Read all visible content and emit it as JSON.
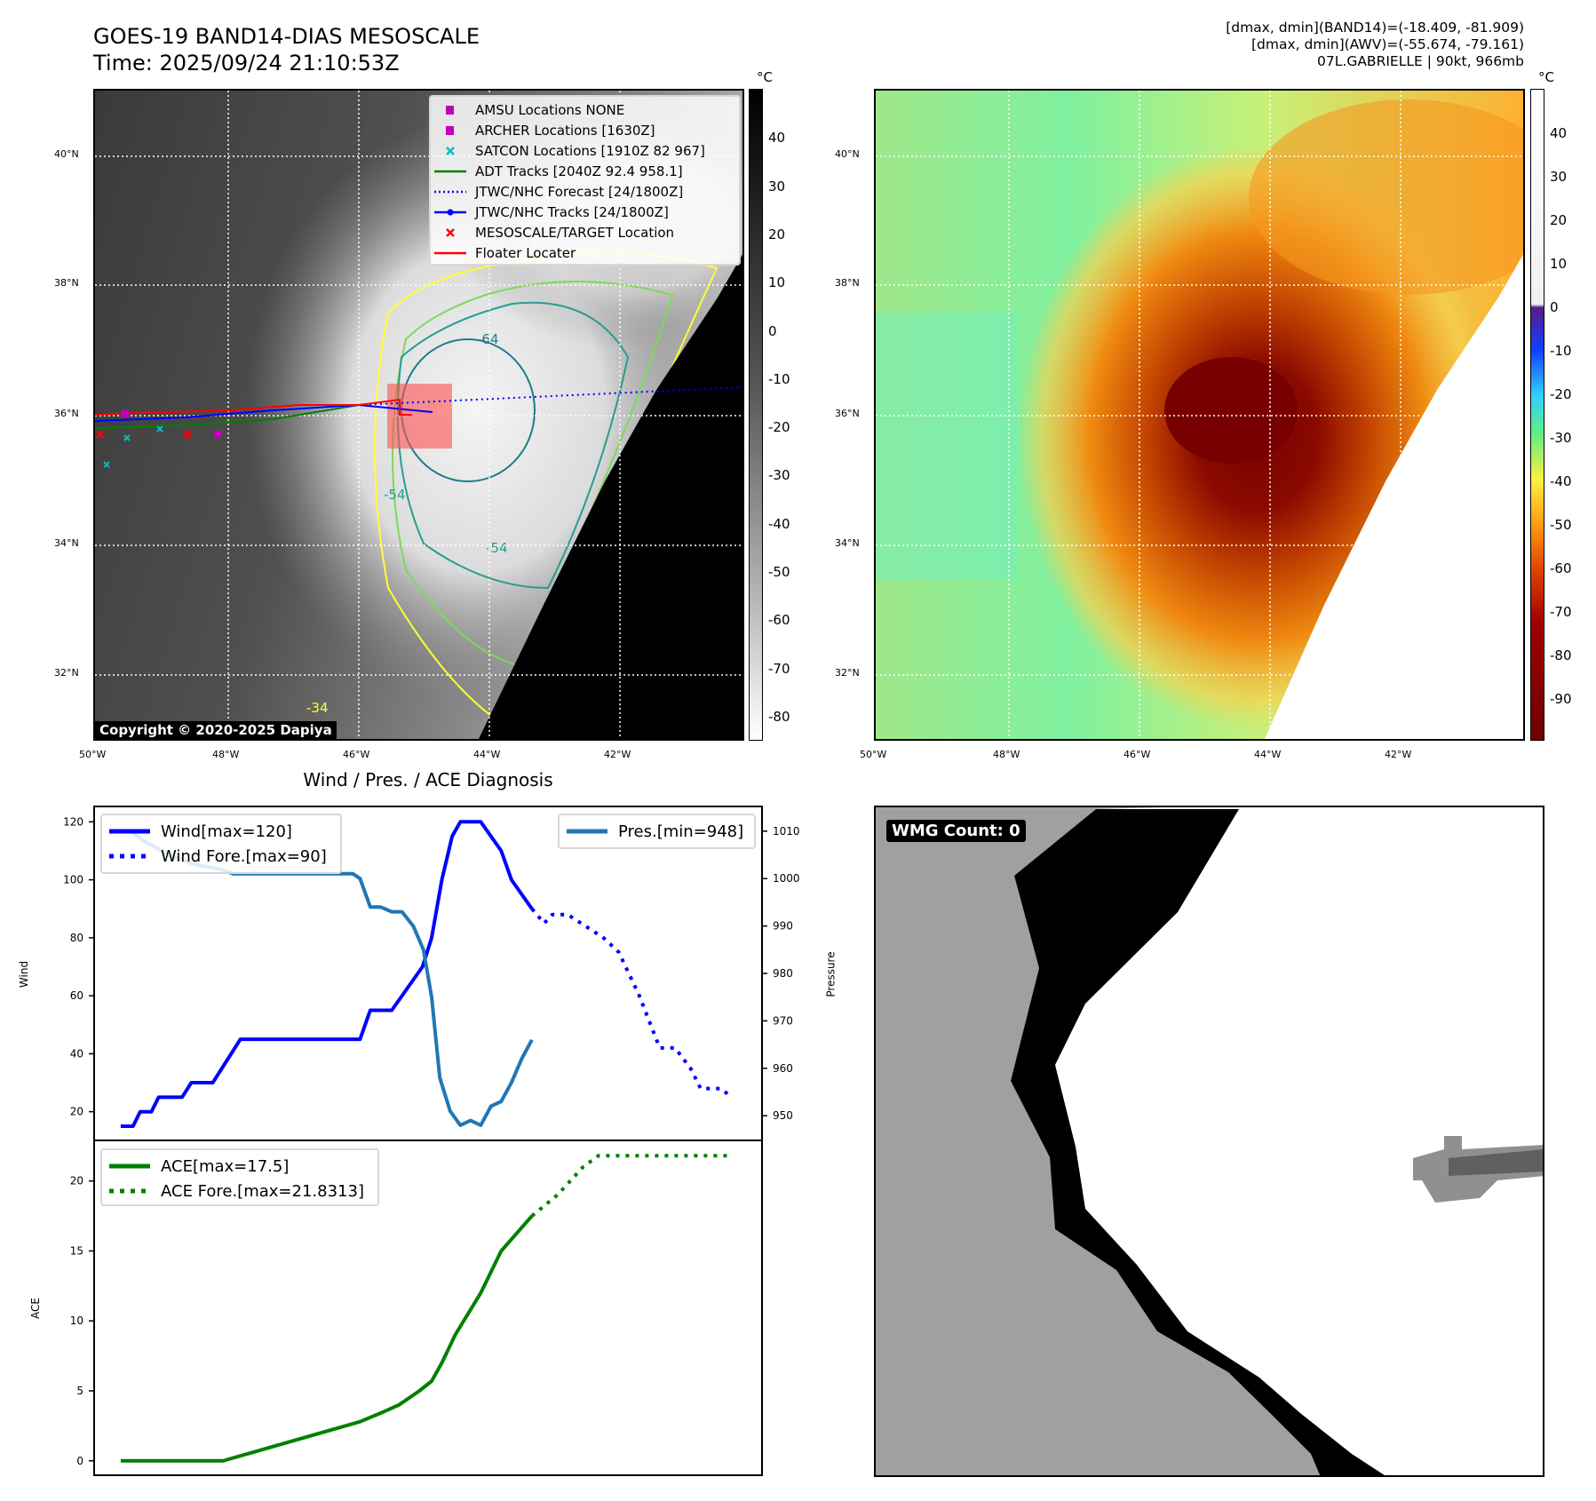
{
  "header": {
    "title": "GOES-19 BAND14-DIAS MESOSCALE",
    "time": "Time: 2025/09/24 21:10:53Z",
    "info_line1": "[dmax, dmin](BAND14)=(-18.409, -81.909)",
    "info_line2": "[dmax, dmin](AWV)=(-55.674, -79.161)",
    "info_line3": "07L.GABRIELLE | 90kt, 966mb"
  },
  "map": {
    "lat_labels": [
      "40°N",
      "38°N",
      "36°N",
      "34°N",
      "32°N"
    ],
    "lon_labels": [
      "50°W",
      "48°W",
      "46°W",
      "44°W",
      "42°W"
    ],
    "contour_labels": [
      "-64",
      "-54",
      "-54",
      "-34"
    ],
    "copyright": "Copyright © 2020-2025 Dapiya",
    "legend": [
      {
        "label": "AMSU Locations NONE",
        "symbol": "square",
        "color": "#c000c0"
      },
      {
        "label": "ARCHER Locations [1630Z]",
        "symbol": "square",
        "color": "#c000c0"
      },
      {
        "label": "SATCON Locations [1910Z 82 967]",
        "symbol": "x",
        "color": "#00bfbf"
      },
      {
        "label": "ADT Tracks [2040Z 92.4 958.1]",
        "symbol": "line",
        "color": "#008000"
      },
      {
        "label": "JTWC/NHC Forecast [24/1800Z]",
        "symbol": "dotted",
        "color": "#0000ff"
      },
      {
        "label": "JTWC/NHC Tracks [24/1800Z]",
        "symbol": "line-dot",
        "color": "#0000ff"
      },
      {
        "label": "MESOSCALE/TARGET Location",
        "symbol": "x",
        "color": "#ff0000"
      },
      {
        "label": "Floater Locater",
        "symbol": "line",
        "color": "#ff0000"
      }
    ]
  },
  "colorbar_gray": {
    "unit": "°C",
    "range": [
      -85,
      50.2
    ],
    "ticks": [
      40,
      30,
      20,
      10,
      0,
      -10,
      -20,
      -30,
      -40,
      -50,
      -60,
      -70,
      -80
    ]
  },
  "colorbar_color": {
    "unit": "°C",
    "range": [
      -99.5,
      50.1
    ],
    "ticks": [
      40,
      30,
      20,
      10,
      0,
      -10,
      -20,
      -30,
      -40,
      -50,
      -60,
      -70,
      -80,
      -90
    ]
  },
  "wmg": {
    "label": "WMG Count: 0"
  },
  "chart_data": [
    {
      "type": "line",
      "title": "Wind / Pres. / ACE Diagnosis",
      "ylabel": "Wind",
      "y2label": "Pressure",
      "xlim": [
        -2.6,
        62.7
      ],
      "ylim": [
        10.1,
        125.3
      ],
      "y2lim": [
        944.8,
        1015.2
      ],
      "yticks": [
        20,
        40,
        60,
        80,
        100,
        120
      ],
      "y2ticks": [
        950,
        960,
        970,
        980,
        990,
        1000,
        1010
      ],
      "legend_left": [
        "Wind[max=120]",
        "Wind Fore.[max=90]"
      ],
      "legend_right": [
        "Pres.[min=948]"
      ],
      "series": [
        {
          "name": "Wind[max=120]",
          "color": "#0000ff",
          "style": "solid",
          "axis": "left",
          "points": [
            [
              0,
              15
            ],
            [
              1.2,
              15
            ],
            [
              1.9,
              20
            ],
            [
              3,
              20
            ],
            [
              3.7,
              25
            ],
            [
              6,
              25
            ],
            [
              6.9,
              30
            ],
            [
              9,
              30
            ],
            [
              11.7,
              45
            ],
            [
              23.4,
              45
            ],
            [
              24.4,
              55
            ],
            [
              26.5,
              55
            ],
            [
              29.5,
              70
            ],
            [
              30.4,
              80
            ],
            [
              31.4,
              100
            ],
            [
              32.4,
              115
            ],
            [
              33.2,
              120
            ],
            [
              35.2,
              120
            ],
            [
              37.2,
              110
            ],
            [
              38.2,
              100
            ],
            [
              40.2,
              90
            ]
          ]
        },
        {
          "name": "Wind Fore.[max=90]",
          "color": "#0000ff",
          "style": "dotted",
          "axis": "left",
          "points": [
            [
              40.2,
              90
            ],
            [
              41.4,
              85
            ],
            [
              42.2,
              88
            ],
            [
              43.7,
              88
            ],
            [
              47.2,
              80
            ],
            [
              48.7,
              75
            ],
            [
              50.7,
              60
            ],
            [
              52.7,
              42
            ],
            [
              54.2,
              42
            ],
            [
              55.7,
              35
            ],
            [
              56.7,
              28
            ],
            [
              58.7,
              28
            ],
            [
              59.7,
              25
            ]
          ]
        },
        {
          "name": "Pres.[min=948]",
          "color": "#1f77b4",
          "style": "solid",
          "axis": "right",
          "points": [
            [
              0,
              1010
            ],
            [
              1,
              1010
            ],
            [
              2.2,
              1008
            ],
            [
              4.7,
              1005
            ],
            [
              7.2,
              1003
            ],
            [
              9.7,
              1002
            ],
            [
              11,
              1001
            ],
            [
              22.7,
              1001
            ],
            [
              23.4,
              1000
            ],
            [
              24.4,
              994
            ],
            [
              25.4,
              994
            ],
            [
              26.5,
              993
            ],
            [
              27.5,
              993
            ],
            [
              28.6,
              990
            ],
            [
              29.6,
              985
            ],
            [
              30.4,
              975
            ],
            [
              31.2,
              958
            ],
            [
              32.2,
              951
            ],
            [
              33.2,
              948
            ],
            [
              34.2,
              949
            ],
            [
              35.2,
              948
            ],
            [
              36.2,
              952
            ],
            [
              37.2,
              953
            ],
            [
              38.2,
              957
            ],
            [
              39.2,
              962
            ],
            [
              40.2,
              966
            ]
          ]
        }
      ]
    },
    {
      "type": "line",
      "ylabel": "ACE",
      "xlim": [
        -2.6,
        62.7
      ],
      "ylim": [
        -1.03,
        22.9
      ],
      "yticks": [
        0,
        5,
        10,
        15,
        20
      ],
      "legend": [
        "ACE[max=17.5]",
        "ACE Fore.[max=21.8313]"
      ],
      "series": [
        {
          "name": "ACE[max=17.5]",
          "color": "#008000",
          "style": "solid",
          "points": [
            [
              0,
              0
            ],
            [
              10,
              0
            ],
            [
              23.4,
              2.8
            ],
            [
              25.7,
              3.5
            ],
            [
              27.2,
              4
            ],
            [
              29.2,
              5
            ],
            [
              30.4,
              5.7
            ],
            [
              31.4,
              7
            ],
            [
              32.7,
              9
            ],
            [
              35.2,
              12
            ],
            [
              37.2,
              15
            ],
            [
              40.2,
              17.5
            ]
          ]
        },
        {
          "name": "ACE Fore.[max=21.8313]",
          "color": "#008000",
          "style": "dotted",
          "points": [
            [
              40.2,
              17.5
            ],
            [
              42.7,
              19
            ],
            [
              45.2,
              21
            ],
            [
              46.7,
              21.8
            ],
            [
              59.7,
              21.8
            ]
          ]
        }
      ]
    }
  ]
}
